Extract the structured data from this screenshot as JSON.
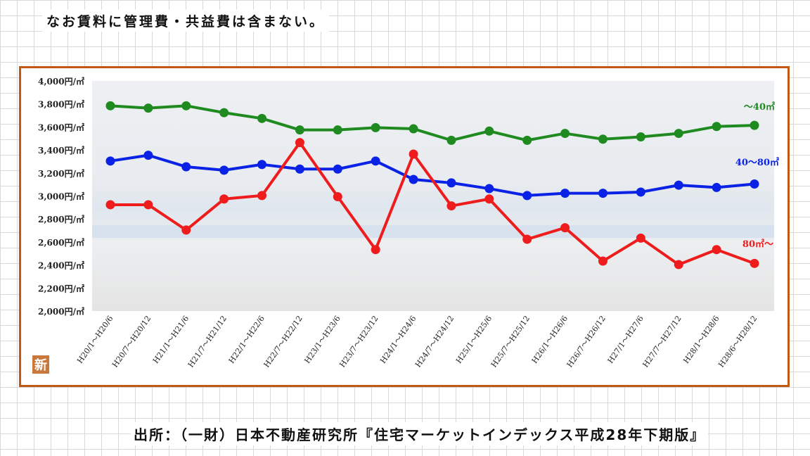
{
  "note": "なお賃料に管理費・共益費は含まない。",
  "source": "出所：（一財）日本不動産研究所『住宅マーケットインデックス平成28年下期版』",
  "badge": "新",
  "chart_data": {
    "type": "line",
    "title": "",
    "xlabel": "",
    "ylabel": "",
    "ylim": [
      2000,
      4000
    ],
    "y_ticks": [
      4000,
      3800,
      3600,
      3400,
      3200,
      3000,
      2800,
      2600,
      2400,
      2200,
      2000
    ],
    "y_tick_labels": [
      "4,000円/㎡",
      "3,800円/㎡",
      "3,600円/㎡",
      "3,400円/㎡",
      "3,200円/㎡",
      "3,000円/㎡",
      "2,800円/㎡",
      "2,600円/㎡",
      "2,400円/㎡",
      "2,200円/㎡",
      "2,000円/㎡"
    ],
    "categories": [
      "H20/1～H20/6",
      "H20/7～H20/12",
      "H21/1～H21/6",
      "H21/7～H21/12",
      "H22/1～H22/6",
      "H22/7～H22/12",
      "H23/1～H23/6",
      "H23/7～H23/12",
      "H24/1～H24/6",
      "H24/7～H24/12",
      "H25/1～H25/6",
      "H25/7～H25/12",
      "H26/1～H26/6",
      "H26/7～H26/12",
      "H27/1～H27/6",
      "H27/7～H27/12",
      "H28/1～H28/6",
      "H28/6～H28/12"
    ],
    "series": [
      {
        "name": "～40㎡",
        "color": "#1f8a1f",
        "values": [
          3790,
          3770,
          3790,
          3730,
          3680,
          3580,
          3580,
          3600,
          3590,
          3490,
          3570,
          3490,
          3550,
          3500,
          3520,
          3550,
          3610,
          3620
        ]
      },
      {
        "name": "40～80㎡",
        "color": "#0a22e6",
        "values": [
          3310,
          3360,
          3260,
          3230,
          3280,
          3240,
          3240,
          3310,
          3150,
          3120,
          3070,
          3010,
          3030,
          3030,
          3040,
          3100,
          3080,
          3110
        ]
      },
      {
        "name": "80㎡～",
        "color": "#ee1c1c",
        "values": [
          2930,
          2930,
          2710,
          2980,
          3010,
          3470,
          3000,
          2540,
          3370,
          2920,
          2980,
          2630,
          2730,
          2440,
          2640,
          2410,
          2540,
          2420
        ]
      }
    ],
    "legend": "inline-right",
    "grid": false
  }
}
